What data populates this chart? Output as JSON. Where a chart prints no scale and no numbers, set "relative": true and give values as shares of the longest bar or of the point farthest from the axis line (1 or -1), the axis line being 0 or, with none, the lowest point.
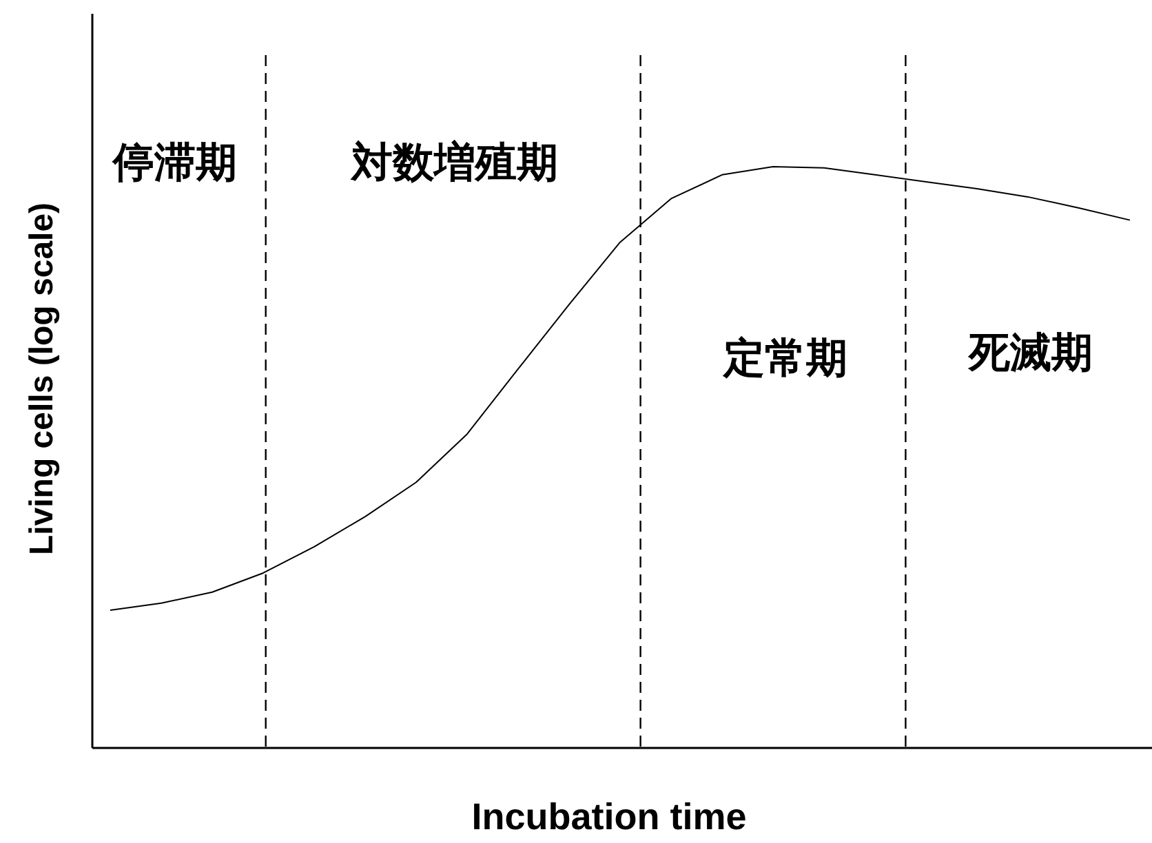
{
  "chart_data": {
    "type": "line",
    "relative": true,
    "xlabel": "Incubation time",
    "ylabel": "Living cells (log scale)",
    "categories": [
      null,
      null,
      null,
      null,
      null,
      null,
      null,
      null,
      null,
      null,
      null,
      null,
      null,
      null,
      null,
      null,
      null,
      null,
      null,
      null,
      null
    ],
    "series": [
      {
        "color": "#000000",
        "values": [
          0.237,
          0.249,
          0.268,
          0.301,
          0.346,
          0.398,
          0.457,
          0.54,
          0.652,
          0.763,
          0.87,
          0.945,
          0.986,
          1,
          0.998,
          0.986,
          0.974,
          0.962,
          0.948,
          0.929,
          0.908
        ]
      }
    ],
    "annotations": [
      "停滞期",
      "対数増殖期",
      "定常期",
      "死滅期"
    ],
    "grid": false,
    "marker": "none",
    "line_style": "solid"
  }
}
